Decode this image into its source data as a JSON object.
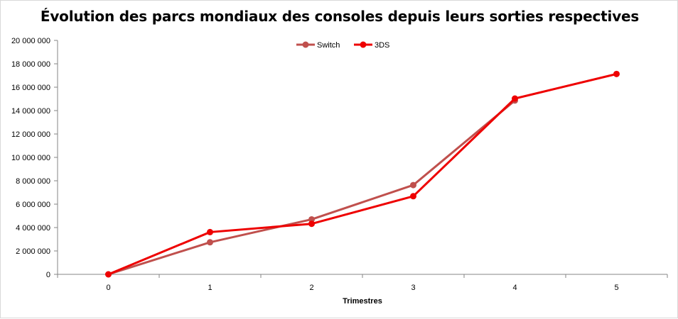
{
  "chart_data": {
    "type": "line",
    "title": "Évolution des parcs mondiaux des consoles depuis leurs sorties respectives",
    "xlabel": "Trimestres",
    "ylabel": "",
    "categories": [
      "0",
      "1",
      "2",
      "3",
      "4",
      "5"
    ],
    "ylim": [
      0,
      20000000
    ],
    "yticks": [
      0,
      2000000,
      4000000,
      6000000,
      8000000,
      10000000,
      12000000,
      14000000,
      16000000,
      18000000,
      20000000
    ],
    "ytick_labels": [
      "0",
      "2 000 000",
      "4 000 000",
      "6 000 000",
      "8 000 000",
      "10 000 000",
      "12 000 000",
      "14 000 000",
      "16 000 000",
      "18 000 000",
      "20 000 000"
    ],
    "grid": false,
    "legend_position": "top-center",
    "series": [
      {
        "name": "Switch",
        "color": "#c0504d",
        "values": [
          0,
          2740000,
          4700000,
          7630000,
          14860000,
          null
        ]
      },
      {
        "name": "3DS",
        "color": "#ee0000",
        "values": [
          0,
          3610000,
          4320000,
          6680000,
          15030000,
          17130000
        ]
      }
    ]
  }
}
